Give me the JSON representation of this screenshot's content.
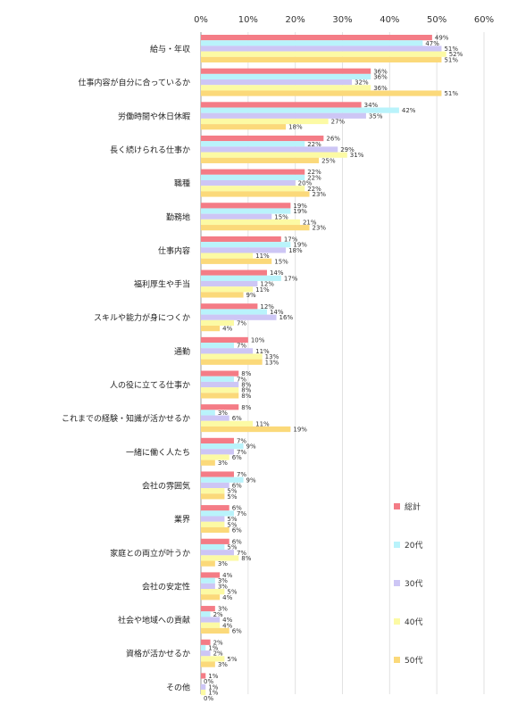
{
  "chart_data": {
    "type": "bar",
    "orientation": "horizontal",
    "xlim": [
      0,
      60
    ],
    "x_ticks": [
      "0%",
      "10%",
      "20%",
      "30%",
      "40%",
      "50%",
      "60%"
    ],
    "grid": true,
    "legend_position": "right",
    "categories": [
      "給与・年収",
      "仕事内容が自分に合っているか",
      "労働時間や休日休暇",
      "長く続けられる仕事か",
      "職種",
      "勤務地",
      "仕事内容",
      "福利厚生や手当",
      "スキルや能力が身につくか",
      "通勤",
      "人の役に立てる仕事か",
      "これまでの経験・知識が活かせるか",
      "一緒に働く人たち",
      "会社の雰囲気",
      "業界",
      "家庭との両立が叶うか",
      "会社の安定性",
      "社会や地域への貢献",
      "資格が活かせるか",
      "その他"
    ],
    "series": [
      {
        "name": "総計",
        "color": "#f47c86",
        "values": [
          49,
          36,
          34,
          26,
          22,
          19,
          17,
          14,
          12,
          10,
          8,
          8,
          7,
          7,
          6,
          6,
          4,
          3,
          2,
          1
        ]
      },
      {
        "name": "20代",
        "color": "#b9f3fb",
        "values": [
          47,
          36,
          42,
          22,
          22,
          19,
          19,
          17,
          14,
          7,
          7,
          3,
          9,
          9,
          7,
          5,
          3,
          2,
          1,
          0
        ]
      },
      {
        "name": "30代",
        "color": "#cdc6f5",
        "values": [
          51,
          32,
          35,
          29,
          20,
          15,
          18,
          12,
          16,
          11,
          8,
          6,
          7,
          6,
          5,
          7,
          3,
          4,
          2,
          1
        ]
      },
      {
        "name": "40代",
        "color": "#fcfaa4",
        "values": [
          52,
          36,
          27,
          31,
          22,
          21,
          11,
          11,
          7,
          13,
          8,
          11,
          6,
          5,
          5,
          8,
          5,
          4,
          5,
          1
        ]
      },
      {
        "name": "50代",
        "color": "#fbd97a",
        "values": [
          51,
          51,
          18,
          25,
          23,
          23,
          15,
          9,
          4,
          13,
          8,
          19,
          3,
          5,
          6,
          3,
          4,
          6,
          3,
          0
        ]
      }
    ]
  }
}
